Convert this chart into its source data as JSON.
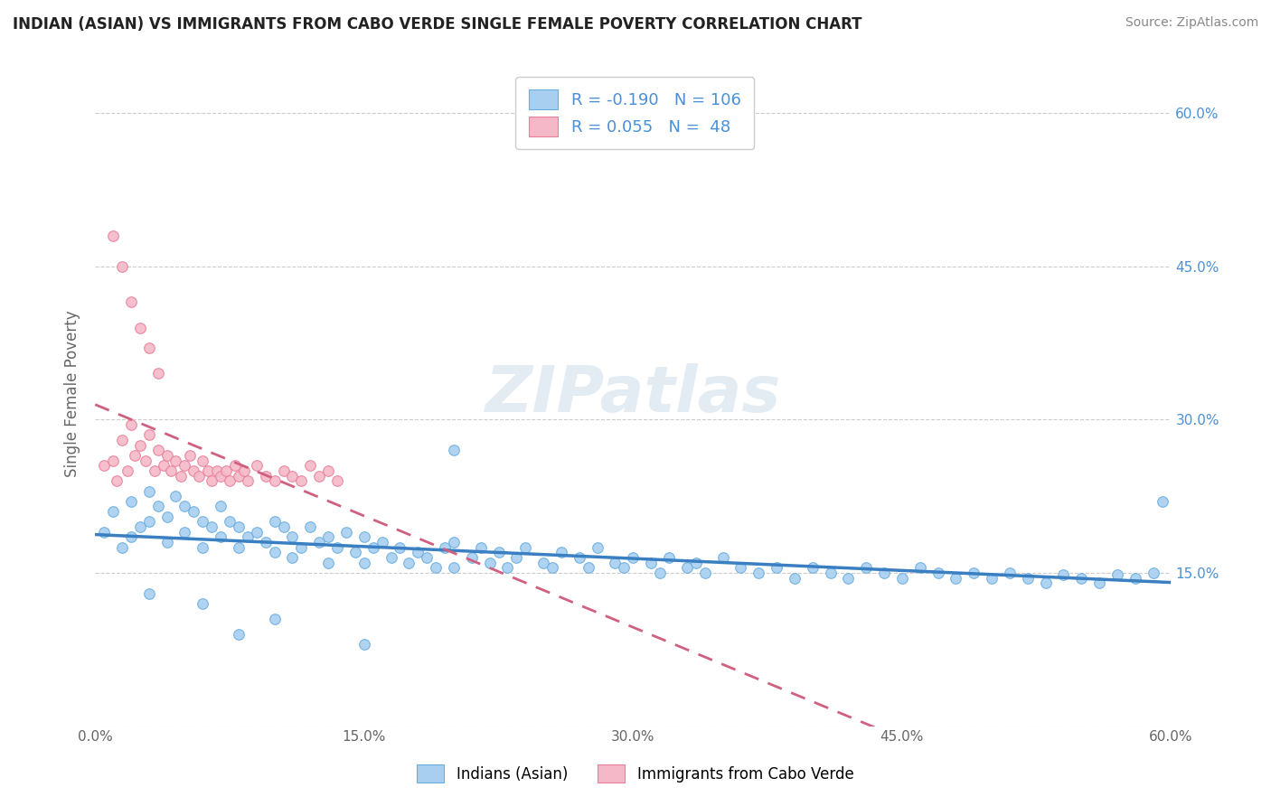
{
  "title": "INDIAN (ASIAN) VS IMMIGRANTS FROM CABO VERDE SINGLE FEMALE POVERTY CORRELATION CHART",
  "source": "Source: ZipAtlas.com",
  "ylabel": "Single Female Poverty",
  "xmin": 0.0,
  "xmax": 0.6,
  "ymin": 0.0,
  "ymax": 0.65,
  "yticks": [
    0.0,
    0.15,
    0.3,
    0.45,
    0.6
  ],
  "ytick_labels_right": [
    "",
    "15.0%",
    "30.0%",
    "45.0%",
    "60.0%"
  ],
  "xticks": [
    0.0,
    0.15,
    0.3,
    0.45,
    0.6
  ],
  "xtick_labels": [
    "0.0%",
    "15.0%",
    "30.0%",
    "45.0%",
    "60.0%"
  ],
  "blue_color": "#A8CFF0",
  "pink_color": "#F5B8C8",
  "blue_edge_color": "#6AAEE0",
  "pink_edge_color": "#E8809A",
  "blue_line_color": "#3A7FC1",
  "pink_line_color": "#D06080",
  "watermark": "ZIPatlas",
  "legend_R1": "-0.190",
  "legend_N1": "106",
  "legend_R2": "0.055",
  "legend_N2": "48",
  "legend_label1": "Indians (Asian)",
  "legend_label2": "Immigrants from Cabo Verde",
  "blue_scatter_x": [
    0.005,
    0.01,
    0.015,
    0.02,
    0.02,
    0.025,
    0.03,
    0.03,
    0.035,
    0.04,
    0.04,
    0.045,
    0.05,
    0.05,
    0.055,
    0.06,
    0.06,
    0.065,
    0.07,
    0.07,
    0.075,
    0.08,
    0.08,
    0.085,
    0.09,
    0.095,
    0.1,
    0.1,
    0.105,
    0.11,
    0.11,
    0.115,
    0.12,
    0.125,
    0.13,
    0.13,
    0.135,
    0.14,
    0.145,
    0.15,
    0.15,
    0.155,
    0.16,
    0.165,
    0.17,
    0.175,
    0.18,
    0.185,
    0.19,
    0.195,
    0.2,
    0.2,
    0.21,
    0.215,
    0.22,
    0.225,
    0.23,
    0.235,
    0.24,
    0.25,
    0.255,
    0.26,
    0.27,
    0.275,
    0.28,
    0.29,
    0.295,
    0.3,
    0.31,
    0.315,
    0.32,
    0.33,
    0.335,
    0.34,
    0.35,
    0.36,
    0.37,
    0.38,
    0.39,
    0.4,
    0.41,
    0.42,
    0.43,
    0.44,
    0.45,
    0.46,
    0.47,
    0.48,
    0.49,
    0.5,
    0.51,
    0.52,
    0.53,
    0.54,
    0.55,
    0.56,
    0.57,
    0.58,
    0.59,
    0.595,
    0.03,
    0.06,
    0.08,
    0.1,
    0.15,
    0.2
  ],
  "blue_scatter_y": [
    0.19,
    0.21,
    0.175,
    0.22,
    0.185,
    0.195,
    0.23,
    0.2,
    0.215,
    0.205,
    0.18,
    0.225,
    0.215,
    0.19,
    0.21,
    0.2,
    0.175,
    0.195,
    0.185,
    0.215,
    0.2,
    0.195,
    0.175,
    0.185,
    0.19,
    0.18,
    0.2,
    0.17,
    0.195,
    0.185,
    0.165,
    0.175,
    0.195,
    0.18,
    0.185,
    0.16,
    0.175,
    0.19,
    0.17,
    0.185,
    0.16,
    0.175,
    0.18,
    0.165,
    0.175,
    0.16,
    0.17,
    0.165,
    0.155,
    0.175,
    0.18,
    0.155,
    0.165,
    0.175,
    0.16,
    0.17,
    0.155,
    0.165,
    0.175,
    0.16,
    0.155,
    0.17,
    0.165,
    0.155,
    0.175,
    0.16,
    0.155,
    0.165,
    0.16,
    0.15,
    0.165,
    0.155,
    0.16,
    0.15,
    0.165,
    0.155,
    0.15,
    0.155,
    0.145,
    0.155,
    0.15,
    0.145,
    0.155,
    0.15,
    0.145,
    0.155,
    0.15,
    0.145,
    0.15,
    0.145,
    0.15,
    0.145,
    0.14,
    0.148,
    0.145,
    0.14,
    0.148,
    0.145,
    0.15,
    0.22,
    0.13,
    0.12,
    0.09,
    0.105,
    0.08,
    0.27
  ],
  "pink_scatter_x": [
    0.005,
    0.01,
    0.012,
    0.015,
    0.018,
    0.02,
    0.022,
    0.025,
    0.028,
    0.03,
    0.033,
    0.035,
    0.038,
    0.04,
    0.042,
    0.045,
    0.048,
    0.05,
    0.053,
    0.055,
    0.058,
    0.06,
    0.063,
    0.065,
    0.068,
    0.07,
    0.073,
    0.075,
    0.078,
    0.08,
    0.083,
    0.085,
    0.09,
    0.095,
    0.1,
    0.105,
    0.11,
    0.115,
    0.12,
    0.125,
    0.13,
    0.135,
    0.01,
    0.015,
    0.02,
    0.025,
    0.03,
    0.035
  ],
  "pink_scatter_y": [
    0.255,
    0.26,
    0.24,
    0.28,
    0.25,
    0.295,
    0.265,
    0.275,
    0.26,
    0.285,
    0.25,
    0.27,
    0.255,
    0.265,
    0.25,
    0.26,
    0.245,
    0.255,
    0.265,
    0.25,
    0.245,
    0.26,
    0.25,
    0.24,
    0.25,
    0.245,
    0.25,
    0.24,
    0.255,
    0.245,
    0.25,
    0.24,
    0.255,
    0.245,
    0.24,
    0.25,
    0.245,
    0.24,
    0.255,
    0.245,
    0.25,
    0.24,
    0.48,
    0.45,
    0.415,
    0.39,
    0.37,
    0.345
  ]
}
